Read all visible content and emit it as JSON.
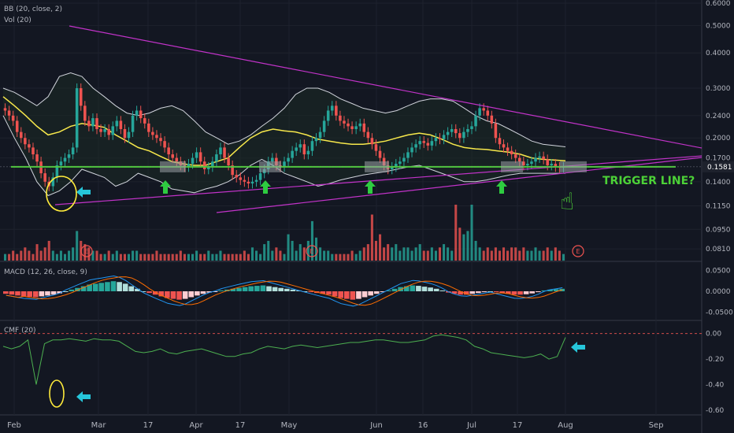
{
  "chart_data": {
    "type": "candlestick",
    "panes": {
      "price": {
        "indicators": [
          "BB (20, close, 2)",
          "Vol (20)"
        ],
        "scale": "log",
        "y_ticks": [
          "0.6000",
          "0.5000",
          "0.4000",
          "0.3000",
          "0.2400",
          "0.2000",
          "0.1700",
          "0.1400",
          "0.1150",
          "0.0950",
          "0.0810"
        ],
        "current_price": "0.1581",
        "annotation": "TRIGGER LINE?",
        "earnings_marker": "E"
      },
      "macd": {
        "label": "MACD (12, 26, close, 9)",
        "y_ticks": [
          "0.0500",
          "0.0000",
          "-0.0500"
        ]
      },
      "cmf": {
        "label": "CMF (20)",
        "y_ticks": [
          "0.00",
          "-0.20",
          "-0.40",
          "-0.60"
        ]
      }
    },
    "x_ticks": [
      "Feb",
      "Mar",
      "17",
      "Apr",
      "17",
      "May",
      "Jun",
      "16",
      "Jul",
      "17",
      "Aug",
      "Sep"
    ],
    "closes": [
      0.25,
      0.24,
      0.23,
      0.21,
      0.2,
      0.19,
      0.185,
      0.175,
      0.165,
      0.15,
      0.14,
      0.135,
      0.145,
      0.16,
      0.165,
      0.17,
      0.175,
      0.185,
      0.3,
      0.26,
      0.23,
      0.22,
      0.235,
      0.215,
      0.21,
      0.215,
      0.205,
      0.22,
      0.23,
      0.215,
      0.2,
      0.21,
      0.24,
      0.25,
      0.235,
      0.225,
      0.21,
      0.205,
      0.2,
      0.195,
      0.185,
      0.175,
      0.17,
      0.165,
      0.16,
      0.158,
      0.162,
      0.17,
      0.178,
      0.165,
      0.155,
      0.158,
      0.165,
      0.175,
      0.185,
      0.17,
      0.16,
      0.148,
      0.145,
      0.142,
      0.14,
      0.138,
      0.14,
      0.142,
      0.15,
      0.155,
      0.165,
      0.17,
      0.16,
      0.158,
      0.165,
      0.17,
      0.18,
      0.185,
      0.19,
      0.175,
      0.18,
      0.195,
      0.2,
      0.21,
      0.23,
      0.25,
      0.26,
      0.24,
      0.23,
      0.225,
      0.22,
      0.215,
      0.22,
      0.225,
      0.21,
      0.2,
      0.19,
      0.18,
      0.17,
      0.16,
      0.155,
      0.158,
      0.162,
      0.165,
      0.17,
      0.178,
      0.185,
      0.19,
      0.195,
      0.192,
      0.188,
      0.195,
      0.2,
      0.198,
      0.205,
      0.21,
      0.215,
      0.208,
      0.2,
      0.21,
      0.215,
      0.22,
      0.24,
      0.255,
      0.25,
      0.24,
      0.225,
      0.2,
      0.19,
      0.185,
      0.18,
      0.175,
      0.17,
      0.165,
      0.16,
      0.162,
      0.165,
      0.17,
      0.172,
      0.168,
      0.16,
      0.162,
      0.158,
      0.157,
      0.158
    ],
    "volumes": [
      2,
      2,
      3,
      2,
      3,
      4,
      3,
      2,
      5,
      3,
      4,
      6,
      3,
      2,
      3,
      2,
      3,
      4,
      9,
      6,
      5,
      4,
      3,
      3,
      2,
      2,
      3,
      2,
      3,
      2,
      2,
      2,
      3,
      3,
      2,
      2,
      2,
      2,
      3,
      2,
      2,
      2,
      2,
      2,
      3,
      2,
      2,
      2,
      3,
      2,
      2,
      3,
      2,
      2,
      3,
      2,
      2,
      2,
      2,
      2,
      3,
      2,
      4,
      3,
      2,
      5,
      6,
      3,
      4,
      3,
      2,
      8,
      6,
      3,
      5,
      4,
      6,
      12,
      7,
      4,
      3,
      3,
      2,
      2,
      2,
      2,
      2,
      3,
      2,
      3,
      4,
      5,
      14,
      6,
      8,
      4,
      5,
      4,
      5,
      3,
      4,
      4,
      3,
      4,
      5,
      3,
      3,
      4,
      3,
      4,
      5,
      4,
      3,
      17,
      10,
      8,
      9,
      17,
      6,
      4,
      3,
      4,
      3,
      4,
      3,
      4,
      3,
      4,
      4,
      3,
      4,
      3,
      3,
      4,
      3,
      3,
      4,
      3,
      4,
      3,
      2
    ],
    "macd_hist": [
      -0.006,
      -0.008,
      -0.01,
      -0.012,
      -0.013,
      -0.014,
      -0.012,
      -0.01,
      -0.008,
      -0.005,
      0.0,
      0.004,
      0.008,
      0.012,
      0.016,
      0.018,
      0.02,
      0.022,
      0.024,
      0.022,
      0.018,
      0.012,
      0.006,
      0.0,
      -0.004,
      -0.008,
      -0.012,
      -0.016,
      -0.018,
      -0.02,
      -0.018,
      -0.014,
      -0.01,
      -0.006,
      -0.003,
      -0.001,
      0.002,
      0.004,
      0.006,
      0.008,
      0.01,
      0.012,
      0.013,
      0.014,
      0.012,
      0.01,
      0.008,
      0.006,
      0.004,
      0.002,
      0.0,
      -0.002,
      -0.004,
      -0.006,
      -0.008,
      -0.012,
      -0.016,
      -0.018,
      -0.02,
      -0.018,
      -0.014,
      -0.01,
      -0.006,
      -0.002,
      0.002,
      0.006,
      0.01,
      0.012,
      0.014,
      0.013,
      0.011,
      0.009,
      0.006,
      0.002,
      -0.003,
      -0.006,
      -0.008,
      -0.008,
      -0.006,
      -0.004,
      -0.002,
      0.0,
      -0.002,
      -0.004,
      -0.006,
      -0.008,
      -0.008,
      -0.007,
      -0.005,
      -0.002,
      0.002,
      0.004,
      0.005,
      0.006
    ],
    "cmf": [
      -0.1,
      -0.12,
      -0.1,
      -0.05,
      -0.4,
      -0.08,
      -0.05,
      -0.05,
      -0.04,
      -0.05,
      -0.06,
      -0.04,
      -0.05,
      -0.05,
      -0.06,
      -0.1,
      -0.14,
      -0.15,
      -0.14,
      -0.12,
      -0.15,
      -0.16,
      -0.14,
      -0.13,
      -0.12,
      -0.14,
      -0.16,
      -0.18,
      -0.18,
      -0.16,
      -0.15,
      -0.12,
      -0.1,
      -0.11,
      -0.12,
      -0.1,
      -0.09,
      -0.1,
      -0.11,
      -0.1,
      -0.09,
      -0.08,
      -0.07,
      -0.07,
      -0.06,
      -0.05,
      -0.05,
      -0.06,
      -0.07,
      -0.07,
      -0.06,
      -0.05,
      -0.02,
      -0.01,
      -0.02,
      -0.03,
      -0.05,
      -0.1,
      -0.12,
      -0.15,
      -0.16,
      -0.17,
      -0.18,
      -0.19,
      -0.18,
      -0.16,
      -0.2,
      -0.18,
      -0.03
    ],
    "bands": {
      "upper": [
        0.3,
        0.29,
        0.275,
        0.26,
        0.28,
        0.33,
        0.34,
        0.33,
        0.3,
        0.28,
        0.26,
        0.245,
        0.24,
        0.245,
        0.255,
        0.26,
        0.25,
        0.23,
        0.21,
        0.2,
        0.19,
        0.195,
        0.205,
        0.22,
        0.235,
        0.255,
        0.285,
        0.3,
        0.3,
        0.29,
        0.275,
        0.265,
        0.255,
        0.25,
        0.245,
        0.25,
        0.26,
        0.27,
        0.275,
        0.275,
        0.27,
        0.255,
        0.24,
        0.23,
        0.225,
        0.215,
        0.205,
        0.195,
        0.19,
        0.188,
        0.186
      ],
      "middle": [
        0.28,
        0.26,
        0.24,
        0.22,
        0.205,
        0.21,
        0.22,
        0.225,
        0.222,
        0.218,
        0.205,
        0.195,
        0.185,
        0.18,
        0.172,
        0.165,
        0.162,
        0.16,
        0.16,
        0.165,
        0.17,
        0.185,
        0.2,
        0.21,
        0.215,
        0.212,
        0.21,
        0.205,
        0.198,
        0.195,
        0.192,
        0.19,
        0.19,
        0.192,
        0.195,
        0.2,
        0.205,
        0.208,
        0.205,
        0.198,
        0.19,
        0.185,
        0.183,
        0.182,
        0.18,
        0.178,
        0.175,
        0.17,
        0.168,
        0.167,
        0.166
      ],
      "lower": [
        0.24,
        0.2,
        0.17,
        0.14,
        0.125,
        0.13,
        0.14,
        0.155,
        0.15,
        0.145,
        0.135,
        0.14,
        0.15,
        0.145,
        0.14,
        0.132,
        0.13,
        0.128,
        0.132,
        0.135,
        0.14,
        0.148,
        0.16,
        0.168,
        0.16,
        0.15,
        0.145,
        0.14,
        0.135,
        0.138,
        0.142,
        0.145,
        0.148,
        0.15,
        0.152,
        0.155,
        0.158,
        0.16,
        0.155,
        0.15,
        0.145,
        0.14,
        0.14,
        0.142,
        0.145,
        0.148,
        0.15,
        0.15,
        0.15,
        0.15,
        0.15
      ]
    },
    "colors": {
      "background": "#131722",
      "up": "#26a69a",
      "down": "#ef5350",
      "bb_middle": "#f7e84b",
      "bb_bands": "#d1d4dc",
      "trendline": "#c233c9",
      "trigger_line": "#4cd137",
      "macd_line": "#2196f3",
      "signal_line": "#ff6d00",
      "cmf_line": "#4caf50",
      "arrow_cyan": "#26c6da",
      "arrow_green": "#2ecc40",
      "circle_yellow": "#ffeb3b"
    }
  }
}
